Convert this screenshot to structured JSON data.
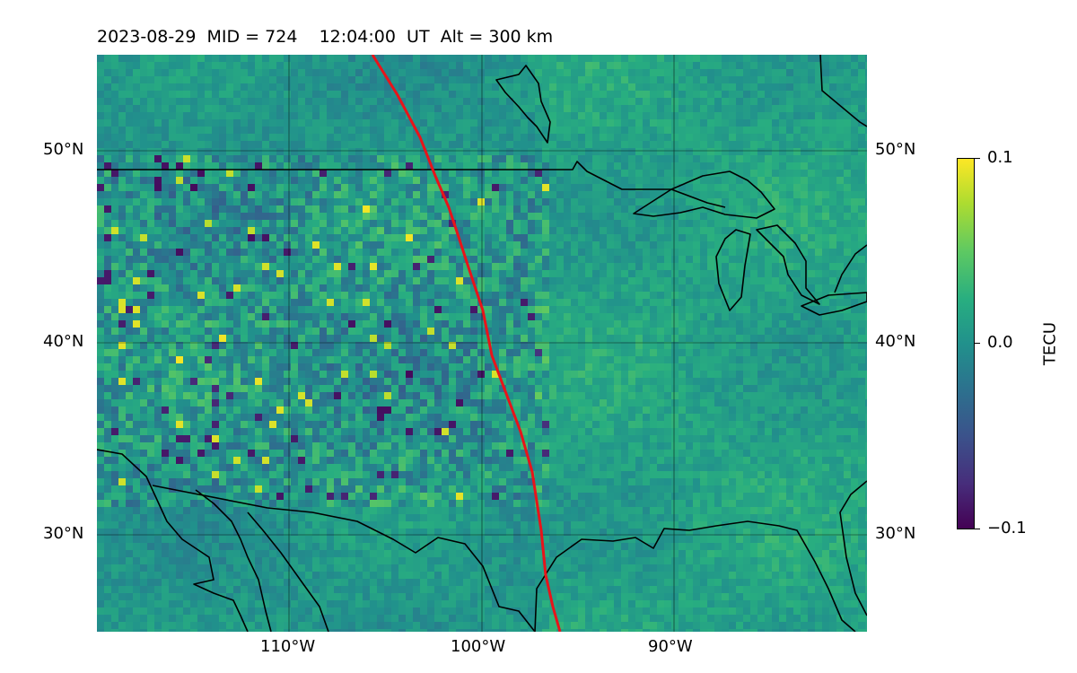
{
  "title": {
    "date": "2023-08-29",
    "mid": "MID = 724",
    "time": "12:04:00",
    "ut": "UT",
    "alt": "Alt = 300 km"
  },
  "map": {
    "lon_range": [
      -120,
      -80
    ],
    "lat_range": [
      25,
      55
    ],
    "gridlines": true,
    "lat_ticks": [
      "30°N",
      "40°N",
      "50°N"
    ],
    "lon_ticks": [
      "110°W",
      "100°W",
      "90°W"
    ],
    "track_color": "#e8141a",
    "coastline_color": "#000000"
  },
  "colorbar": {
    "label": "TECU",
    "ticks": [
      "0.1",
      "0.0",
      "−0.1"
    ],
    "range": [
      -0.1,
      0.1
    ],
    "colormap": "viridis"
  }
}
